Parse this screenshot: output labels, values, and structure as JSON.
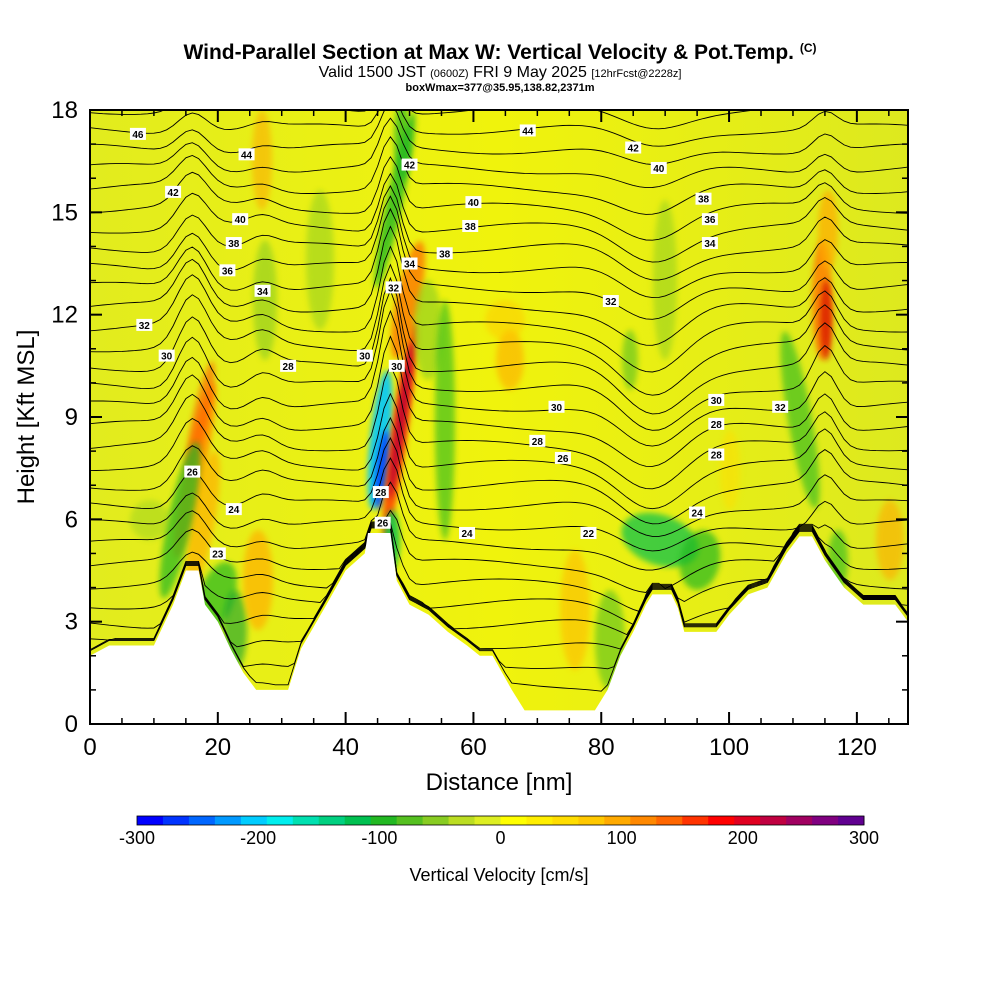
{
  "title": {
    "main": "Wind-Parallel Section at Max W: Vertical Velocity & Pot.Temp.",
    "copyright": "(C)",
    "valid_prefix": "Valid 1500 JST",
    "valid_utc": "(0600Z)",
    "valid_date": "FRI 9 May 2025",
    "forecast": "[12hrFcst@2228z]",
    "box": "boxWmax=377@35.95,138.82,2371m"
  },
  "chart_data": {
    "type": "heatmap",
    "xlabel": "Distance [nm]",
    "ylabel": "Height [Kft MSL]",
    "xlim": [
      0,
      128
    ],
    "ylim": [
      0,
      18
    ],
    "x_ticks": [
      "0",
      "20",
      "40",
      "60",
      "80",
      "100",
      "120"
    ],
    "y_ticks": [
      "0",
      "3",
      "6",
      "9",
      "12",
      "15",
      "18"
    ],
    "colorbar": {
      "label": "Vertical Velocity [cm/s]",
      "range": [
        -300,
        300
      ],
      "tick_labels": [
        "-300",
        "-200",
        "-100",
        "0",
        "100",
        "200",
        "300"
      ],
      "colors": [
        "#0000ff",
        "#0033ff",
        "#0066ff",
        "#0099ff",
        "#00ccff",
        "#00eeee",
        "#00e0b0",
        "#00d080",
        "#00c050",
        "#22b822",
        "#55c020",
        "#88cc22",
        "#bbdd22",
        "#ddee22",
        "#ffff00",
        "#ffee00",
        "#ffdd00",
        "#ffc800",
        "#ffaa00",
        "#ff8800",
        "#ff6600",
        "#ff3300",
        "#ff0000",
        "#e00020",
        "#c00040",
        "#a00060",
        "#800080",
        "#600090"
      ]
    },
    "terrain": [
      [
        0,
        2
      ],
      [
        3,
        2.3
      ],
      [
        10,
        2.3
      ],
      [
        13,
        3.5
      ],
      [
        15,
        4.5
      ],
      [
        17,
        4.5
      ],
      [
        18,
        3.5
      ],
      [
        20,
        3
      ],
      [
        22,
        2.2
      ],
      [
        24,
        1.5
      ],
      [
        26,
        1
      ],
      [
        31,
        1
      ],
      [
        33,
        2.2
      ],
      [
        37,
        3.5
      ],
      [
        40,
        4.5
      ],
      [
        43,
        5
      ],
      [
        43.5,
        5.6
      ],
      [
        47,
        5.6
      ],
      [
        48,
        4.2
      ],
      [
        50,
        3.5
      ],
      [
        53,
        3.2
      ],
      [
        56,
        2.7
      ],
      [
        59,
        2.3
      ],
      [
        61,
        2
      ],
      [
        63,
        2
      ],
      [
        66,
        1
      ],
      [
        68,
        0.4
      ],
      [
        79,
        0.4
      ],
      [
        81,
        1
      ],
      [
        83,
        2
      ],
      [
        85,
        2.7
      ],
      [
        87,
        3.5
      ],
      [
        88,
        3.8
      ],
      [
        91,
        3.8
      ],
      [
        92,
        3.4
      ],
      [
        93,
        2.7
      ],
      [
        98,
        2.7
      ],
      [
        100,
        3.2
      ],
      [
        103,
        3.8
      ],
      [
        106,
        4
      ],
      [
        109,
        5
      ],
      [
        111,
        5.5
      ],
      [
        113,
        5.5
      ],
      [
        115,
        4.8
      ],
      [
        118,
        4
      ],
      [
        121,
        3.5
      ],
      [
        126,
        3.5
      ],
      [
        128,
        3
      ]
    ],
    "contour_labels": [
      {
        "text": "46",
        "x": 7.5,
        "y": 17.3
      },
      {
        "text": "44",
        "x": 24.5,
        "y": 16.7
      },
      {
        "text": "42",
        "x": 13,
        "y": 15.6
      },
      {
        "text": "40",
        "x": 23.5,
        "y": 14.8
      },
      {
        "text": "38",
        "x": 22.5,
        "y": 14.1
      },
      {
        "text": "36",
        "x": 21.5,
        "y": 13.3
      },
      {
        "text": "34",
        "x": 27,
        "y": 12.7
      },
      {
        "text": "32",
        "x": 8.5,
        "y": 11.7
      },
      {
        "text": "30",
        "x": 12,
        "y": 10.8
      },
      {
        "text": "28",
        "x": 31,
        "y": 10.5
      },
      {
        "text": "26",
        "x": 16,
        "y": 7.4
      },
      {
        "text": "24",
        "x": 22.5,
        "y": 6.3
      },
      {
        "text": "23",
        "x": 20,
        "y": 5
      },
      {
        "text": "42",
        "x": 50,
        "y": 16.4
      },
      {
        "text": "40",
        "x": 60,
        "y": 15.3
      },
      {
        "text": "38",
        "x": 59.5,
        "y": 14.6
      },
      {
        "text": "38",
        "x": 55.5,
        "y": 13.8
      },
      {
        "text": "34",
        "x": 50,
        "y": 13.5
      },
      {
        "text": "32",
        "x": 47.5,
        "y": 12.8
      },
      {
        "text": "30",
        "x": 43,
        "y": 10.8
      },
      {
        "text": "30",
        "x": 48,
        "y": 10.5
      },
      {
        "text": "28",
        "x": 45.5,
        "y": 6.8
      },
      {
        "text": "26",
        "x": 45.8,
        "y": 5.9
      },
      {
        "text": "44",
        "x": 68.5,
        "y": 17.4
      },
      {
        "text": "42",
        "x": 85,
        "y": 16.9
      },
      {
        "text": "40",
        "x": 89,
        "y": 16.3
      },
      {
        "text": "38",
        "x": 96,
        "y": 15.4
      },
      {
        "text": "36",
        "x": 97,
        "y": 14.8
      },
      {
        "text": "34",
        "x": 97,
        "y": 14.1
      },
      {
        "text": "32",
        "x": 81.5,
        "y": 12.4
      },
      {
        "text": "30",
        "x": 73,
        "y": 9.3
      },
      {
        "text": "30",
        "x": 98,
        "y": 9.5
      },
      {
        "text": "28",
        "x": 70,
        "y": 8.3
      },
      {
        "text": "28",
        "x": 98,
        "y": 8.8
      },
      {
        "text": "28",
        "x": 98,
        "y": 7.9
      },
      {
        "text": "26",
        "x": 74,
        "y": 7.8
      },
      {
        "text": "32",
        "x": 108,
        "y": 9.3
      },
      {
        "text": "24",
        "x": 59,
        "y": 5.6
      },
      {
        "text": "24",
        "x": 95,
        "y": 6.2
      },
      {
        "text": "22",
        "x": 78,
        "y": 5.6
      }
    ]
  }
}
